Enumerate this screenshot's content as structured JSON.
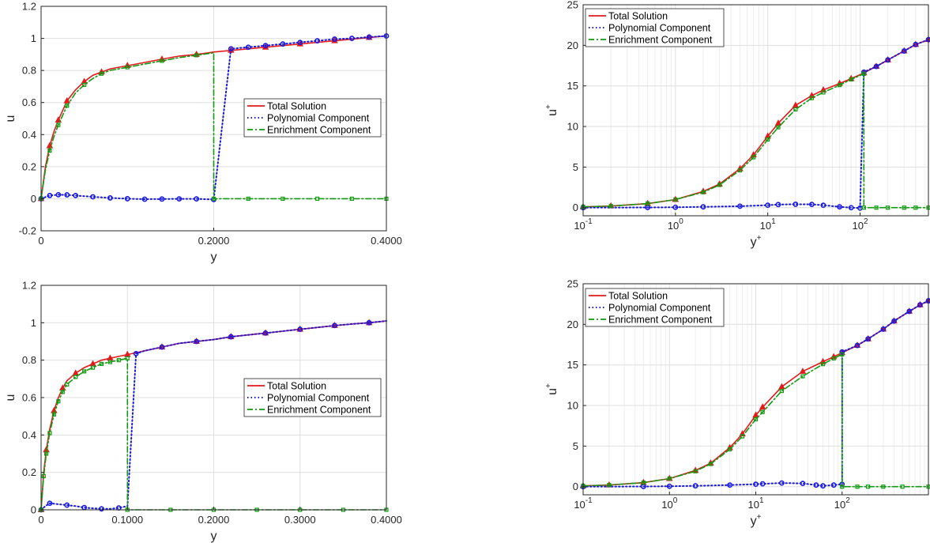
{
  "colors": {
    "total": "#e41a1c",
    "poly": "#1a1adf",
    "enrich": "#119a11",
    "grid": "#dfdfdf",
    "axis": "#262626"
  },
  "chart_data": [
    {
      "type": "line",
      "xscale": "linear",
      "xlim": [
        0,
        0.4
      ],
      "ylim": [
        -0.2,
        1.2
      ],
      "xticks": [
        0,
        0.2,
        0.4
      ],
      "xticklabels": [
        "0",
        "0.2000",
        "0.4000"
      ],
      "yticks": [
        -0.2,
        0,
        0.2,
        0.4,
        0.6,
        0.8,
        1,
        1.2
      ],
      "yticklabels": [
        "-0.2",
        "0",
        "0.2",
        "0.4",
        "0.6",
        "0.8",
        "1",
        "1.2"
      ],
      "xlabel": "y",
      "ylabel": "u",
      "legend_loc": "center-right",
      "grid": true,
      "interface": 0.2,
      "legend": [
        "Total Solution",
        "Polynomial Component",
        "Enrichment Component"
      ],
      "series": [
        {
          "name": "Total Solution",
          "x": [
            0,
            0.005,
            0.01,
            0.015,
            0.02,
            0.025,
            0.03,
            0.04,
            0.05,
            0.06,
            0.07,
            0.08,
            0.1,
            0.12,
            0.14,
            0.16,
            0.18,
            0.2,
            0.22,
            0.24,
            0.26,
            0.28,
            0.3,
            0.32,
            0.34,
            0.36,
            0.38,
            0.4
          ],
          "y": [
            0,
            0.2,
            0.33,
            0.42,
            0.49,
            0.55,
            0.61,
            0.68,
            0.73,
            0.77,
            0.79,
            0.81,
            0.83,
            0.85,
            0.87,
            0.89,
            0.9,
            0.915,
            0.925,
            0.935,
            0.945,
            0.955,
            0.965,
            0.975,
            0.985,
            0.995,
            1.005,
            1.015
          ]
        },
        {
          "name": "Polynomial Component",
          "x": [
            0,
            0.01,
            0.02,
            0.03,
            0.04,
            0.06,
            0.08,
            0.1,
            0.12,
            0.14,
            0.16,
            0.18,
            0.2,
            0.22,
            0.24,
            0.26,
            0.28,
            0.3,
            0.32,
            0.34,
            0.36,
            0.38,
            0.4
          ],
          "y": [
            0,
            0.02,
            0.025,
            0.024,
            0.02,
            0.012,
            0.005,
            0.0,
            -0.003,
            -0.002,
            -0.001,
            -0.001,
            -0.005,
            0.935,
            0.945,
            0.955,
            0.965,
            0.975,
            0.985,
            0.995,
            1.0,
            1.008,
            1.015
          ]
        },
        {
          "name": "Enrichment Component",
          "x": [
            0,
            0.005,
            0.01,
            0.015,
            0.02,
            0.025,
            0.03,
            0.04,
            0.05,
            0.06,
            0.07,
            0.08,
            0.1,
            0.12,
            0.14,
            0.16,
            0.18,
            0.2,
            0.2,
            0.22,
            0.24,
            0.26,
            0.28,
            0.3,
            0.32,
            0.34,
            0.36,
            0.38,
            0.4
          ],
          "y": [
            0,
            0.18,
            0.3,
            0.39,
            0.46,
            0.52,
            0.58,
            0.66,
            0.71,
            0.75,
            0.78,
            0.8,
            0.82,
            0.84,
            0.86,
            0.88,
            0.895,
            0.91,
            0,
            0,
            0,
            0,
            0,
            0,
            0,
            0,
            0,
            0,
            0
          ]
        }
      ]
    },
    {
      "type": "line",
      "xscale": "log",
      "xlim": [
        0.1,
        550
      ],
      "ylim": [
        -1,
        25
      ],
      "xticks": [
        0.1,
        1,
        10,
        100
      ],
      "xticklabels": [
        [
          "10",
          "-1"
        ],
        [
          "10",
          "0"
        ],
        [
          "10",
          "1"
        ],
        [
          "10",
          "2"
        ]
      ],
      "yticks": [
        0,
        5,
        10,
        15,
        20,
        25
      ],
      "yticklabels": [
        "0",
        "5",
        "10",
        "15",
        "20",
        "25"
      ],
      "xlabel": [
        "y",
        "+"
      ],
      "ylabel": [
        "u",
        "+"
      ],
      "legend_loc": "top-left",
      "grid": true,
      "interface": 110,
      "legend": [
        "Total Solution",
        "Polynomial Component",
        "Enrichment Component"
      ],
      "series": [
        {
          "name": "Total Solution",
          "x": [
            0.1,
            0.2,
            0.5,
            1,
            2,
            3,
            5,
            7,
            10,
            13,
            20,
            30,
            40,
            60,
            80,
            110,
            150,
            200,
            300,
            400,
            550
          ],
          "y": [
            0.1,
            0.2,
            0.5,
            1,
            2,
            2.9,
            4.8,
            6.5,
            8.8,
            10.4,
            12.6,
            13.8,
            14.5,
            15.3,
            15.9,
            16.6,
            17.4,
            18.2,
            19.3,
            20.1,
            20.7
          ]
        },
        {
          "name": "Polynomial Component",
          "x": [
            0.1,
            0.5,
            1,
            2,
            5,
            10,
            13,
            20,
            30,
            40,
            60,
            80,
            100,
            110,
            150,
            200,
            300,
            400,
            550
          ],
          "y": [
            0,
            0.02,
            0.05,
            0.1,
            0.18,
            0.3,
            0.38,
            0.42,
            0.4,
            0.3,
            0.1,
            0.0,
            -0.05,
            16.7,
            17.4,
            18.2,
            19.3,
            20.1,
            20.7
          ]
        },
        {
          "name": "Enrichment Component",
          "x": [
            0.1,
            0.2,
            0.5,
            1,
            2,
            3,
            5,
            7,
            10,
            13,
            20,
            30,
            40,
            60,
            80,
            110,
            110,
            150,
            200,
            300,
            400,
            550
          ],
          "y": [
            0.1,
            0.2,
            0.5,
            1,
            1.9,
            2.8,
            4.6,
            6.2,
            8.4,
            9.9,
            12.1,
            13.5,
            14.2,
            15.1,
            15.8,
            16.5,
            0,
            0,
            0,
            0,
            0,
            0
          ]
        }
      ]
    },
    {
      "type": "line",
      "xscale": "linear",
      "xlim": [
        0,
        0.4
      ],
      "ylim": [
        0,
        1.2
      ],
      "xticks": [
        0,
        0.1,
        0.2,
        0.3,
        0.4
      ],
      "xticklabels": [
        "0",
        "0.1000",
        "0.2000",
        "0.3000",
        "0.4000"
      ],
      "yticks": [
        0,
        0.2,
        0.4,
        0.6,
        0.8,
        1,
        1.2
      ],
      "yticklabels": [
        "0",
        "0.2",
        "0.4",
        "0.6",
        "0.8",
        "1",
        "1.2"
      ],
      "xlabel": "y",
      "ylabel": "u",
      "legend_loc": "center-right",
      "grid": true,
      "interface": 0.1,
      "legend": [
        "Total Solution",
        "Polynomial Component",
        "Enrichment Component"
      ],
      "series": [
        {
          "name": "Total Solution",
          "x": [
            0,
            0.003,
            0.006,
            0.01,
            0.015,
            0.02,
            0.025,
            0.03,
            0.04,
            0.05,
            0.06,
            0.07,
            0.08,
            0.09,
            0.1,
            0.12,
            0.14,
            0.16,
            0.18,
            0.2,
            0.22,
            0.24,
            0.26,
            0.28,
            0.3,
            0.32,
            0.34,
            0.36,
            0.38,
            0.4
          ],
          "y": [
            0,
            0.2,
            0.32,
            0.43,
            0.53,
            0.6,
            0.65,
            0.69,
            0.73,
            0.76,
            0.78,
            0.8,
            0.81,
            0.82,
            0.83,
            0.85,
            0.87,
            0.89,
            0.9,
            0.91,
            0.925,
            0.935,
            0.945,
            0.955,
            0.965,
            0.975,
            0.985,
            0.993,
            1.0,
            1.01
          ]
        },
        {
          "name": "Polynomial Component",
          "x": [
            0,
            0.005,
            0.01,
            0.02,
            0.03,
            0.04,
            0.05,
            0.06,
            0.07,
            0.08,
            0.09,
            0.1,
            0.11,
            0.12,
            0.14,
            0.16,
            0.18,
            0.2,
            0.22,
            0.24,
            0.26,
            0.28,
            0.3,
            0.32,
            0.34,
            0.36,
            0.38,
            0.4
          ],
          "y": [
            0,
            0.02,
            0.035,
            0.03,
            0.025,
            0.02,
            0.012,
            0.008,
            0.005,
            0.005,
            0.01,
            0.02,
            0.835,
            0.85,
            0.87,
            0.89,
            0.9,
            0.91,
            0.925,
            0.935,
            0.945,
            0.955,
            0.965,
            0.975,
            0.985,
            0.993,
            1.0,
            1.01
          ]
        },
        {
          "name": "Enrichment Component",
          "x": [
            0,
            0.003,
            0.006,
            0.01,
            0.015,
            0.02,
            0.025,
            0.03,
            0.04,
            0.05,
            0.06,
            0.07,
            0.08,
            0.09,
            0.1,
            0.1,
            0.15,
            0.2,
            0.25,
            0.3,
            0.35,
            0.4
          ],
          "y": [
            0,
            0.18,
            0.3,
            0.41,
            0.51,
            0.58,
            0.63,
            0.67,
            0.71,
            0.74,
            0.76,
            0.78,
            0.79,
            0.8,
            0.81,
            0,
            0,
            0,
            0,
            0,
            0,
            0
          ]
        }
      ]
    },
    {
      "type": "line",
      "xscale": "log",
      "xlim": [
        0.1,
        1000
      ],
      "ylim": [
        -1,
        25
      ],
      "xticks": [
        0.1,
        1,
        10,
        100
      ],
      "xticklabels": [
        [
          "10",
          "-1"
        ],
        [
          "10",
          "0"
        ],
        [
          "10",
          "1"
        ],
        [
          "10",
          "2"
        ]
      ],
      "yticks": [
        0,
        5,
        10,
        15,
        20,
        25
      ],
      "yticklabels": [
        "0",
        "5",
        "10",
        "15",
        "20",
        "25"
      ],
      "xlabel": [
        "y",
        "+"
      ],
      "ylabel": [
        "u",
        "+"
      ],
      "legend_loc": "top-left",
      "grid": true,
      "interface": 100,
      "legend": [
        "Total Solution",
        "Polynomial Component",
        "Enrichment Component"
      ],
      "series": [
        {
          "name": "Total Solution",
          "x": [
            0.1,
            0.2,
            0.5,
            1,
            2,
            3,
            5,
            7,
            10,
            12,
            20,
            35,
            60,
            80,
            100,
            150,
            200,
            300,
            400,
            600,
            800,
            1000
          ],
          "y": [
            0.1,
            0.2,
            0.5,
            1,
            2,
            2.9,
            4.8,
            6.5,
            8.8,
            9.8,
            12.3,
            14.2,
            15.4,
            16.0,
            16.5,
            17.4,
            18.2,
            19.4,
            20.4,
            21.6,
            22.4,
            22.9
          ]
        },
        {
          "name": "Polynomial Component",
          "x": [
            0.1,
            0.5,
            1,
            2,
            5,
            10,
            12,
            20,
            35,
            50,
            60,
            80,
            100,
            100,
            150,
            200,
            300,
            400,
            600,
            800,
            1000
          ],
          "y": [
            0,
            0.02,
            0.05,
            0.1,
            0.2,
            0.3,
            0.35,
            0.45,
            0.4,
            0.2,
            0.1,
            0.2,
            0.3,
            16.6,
            17.4,
            18.2,
            19.4,
            20.4,
            21.6,
            22.4,
            22.9
          ]
        },
        {
          "name": "Enrichment Component",
          "x": [
            0.1,
            0.2,
            0.5,
            1,
            2,
            3,
            5,
            7,
            10,
            12,
            20,
            35,
            60,
            80,
            100,
            100,
            150,
            200,
            300,
            500,
            1000
          ],
          "y": [
            0.1,
            0.2,
            0.5,
            1,
            1.9,
            2.8,
            4.6,
            6.2,
            8.3,
            9.2,
            11.8,
            13.6,
            15.1,
            15.8,
            16.3,
            0,
            0,
            0,
            0,
            0,
            0
          ]
        }
      ]
    }
  ]
}
